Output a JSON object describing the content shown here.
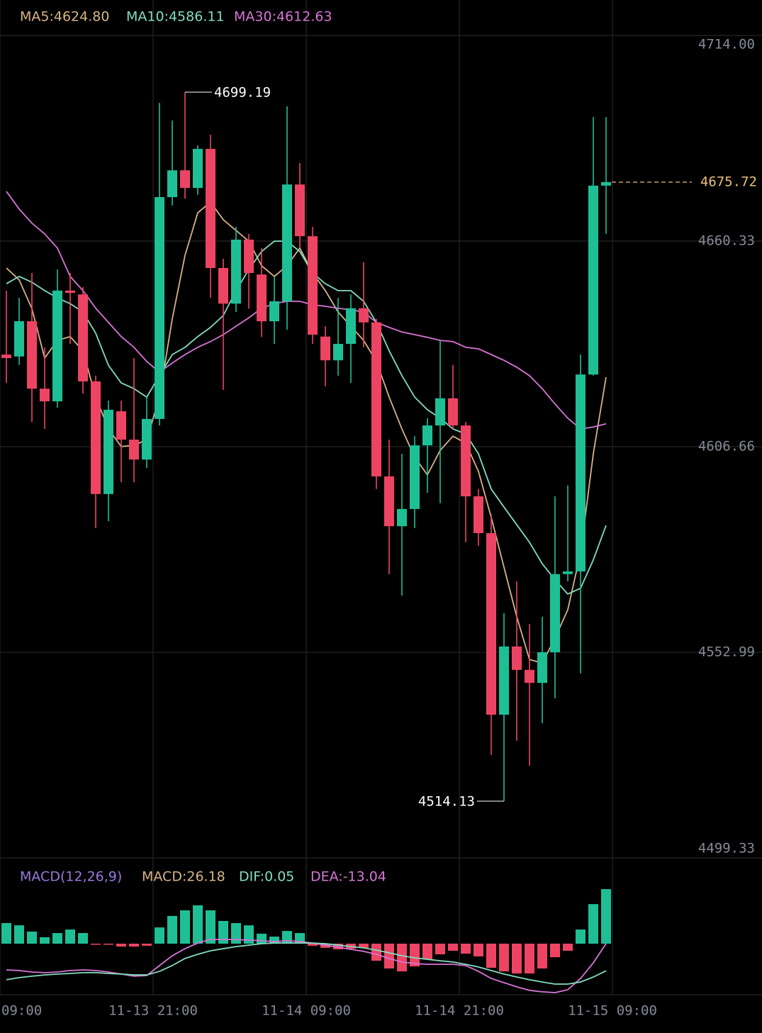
{
  "chart_data": [
    {
      "type": "candlestick",
      "open": [
        4630.7,
        4630.2,
        4639.4,
        4621.8,
        4618.5,
        4647.4,
        4646.4,
        4623.7,
        4594.3,
        4615.9,
        4608.5,
        4603.3,
        4613.9,
        4671.8,
        4678.8,
        4674.2,
        4684.4,
        4653.3,
        4644.0,
        4660.7,
        4651.6,
        4639.4,
        4644.6,
        4675.1,
        4661.6,
        4635.4,
        4629.2,
        4633.5,
        4642.8,
        4639.1,
        4598.9,
        4585.9,
        4590.4,
        4607.0,
        4612.2,
        4619.3,
        4612.2,
        4593.7,
        4584.1,
        4536.7,
        4554.5,
        4548.4,
        4545.0,
        4553.0,
        4573.4,
        4574.1,
        4625.5,
        4674.8
      ],
      "high": [
        4647.4,
        4645.5,
        4652.0,
        4632.6,
        4652.9,
        4652.0,
        4648.3,
        4625.2,
        4618.7,
        4618.7,
        4629.8,
        4619.6,
        4696.4,
        4691.8,
        4699.19,
        4685.3,
        4688.1,
        4655.7,
        4664.0,
        4662.2,
        4658.5,
        4651.1,
        4695.5,
        4680.7,
        4664.0,
        4638.1,
        4645.5,
        4646.4,
        4654.8,
        4640.0,
        4608.5,
        4604.8,
        4609.4,
        4614.1,
        4634.4,
        4628.0,
        4613.1,
        4595.6,
        4589.1,
        4563.2,
        4571.5,
        4560.4,
        4562.3,
        4593.7,
        4596.5,
        4630.7,
        4692.7,
        4692.7
      ],
      "low": [
        4623.3,
        4628.0,
        4613.1,
        4611.3,
        4616.8,
        4633.5,
        4620.5,
        4585.4,
        4587.2,
        4597.4,
        4597.4,
        4601.1,
        4612.2,
        4669.6,
        4671.4,
        4672.4,
        4645.5,
        4621.5,
        4641.8,
        4642.7,
        4635.3,
        4633.5,
        4637.2,
        4658.5,
        4633.5,
        4622.4,
        4625.2,
        4623.3,
        4632.6,
        4595.6,
        4573.4,
        4567.8,
        4585.4,
        4594.6,
        4591.9,
        4611.3,
        4581.7,
        4580.8,
        4526.2,
        4514.13,
        4529.9,
        4523.4,
        4534.5,
        4541.0,
        4571.5,
        4547.5,
        4625.2,
        4662.2
      ],
      "close": [
        4629.8,
        4639.4,
        4621.8,
        4618.5,
        4647.4,
        4646.8,
        4623.7,
        4594.3,
        4616.3,
        4608.5,
        4603.3,
        4613.9,
        4671.8,
        4678.8,
        4674.2,
        4684.4,
        4653.3,
        4644.0,
        4660.7,
        4652.0,
        4639.4,
        4644.6,
        4675.1,
        4661.6,
        4635.9,
        4629.2,
        4633.5,
        4642.8,
        4639.1,
        4598.9,
        4585.9,
        4590.4,
        4607.0,
        4612.2,
        4619.3,
        4612.2,
        4593.7,
        4584.1,
        4536.7,
        4554.5,
        4548.4,
        4545.0,
        4553.0,
        4573.4,
        4574.1,
        4625.5,
        4674.8,
        4675.72
      ],
      "up_color": "#1fbf96",
      "down_color": "#ee4463",
      "last_price_color": "#e9c07a",
      "series": [
        {
          "legend": "MA5:4624.80",
          "color": "#d6b486",
          "values": [
            4653.3,
            4650.2,
            4642.7,
            4629.8,
            4634.4,
            4635.4,
            4631.7,
            4619.6,
            4611.3,
            4606.7,
            4607.0,
            4608.5,
            4619.6,
            4640.0,
            4656.6,
            4667.7,
            4670.5,
            4665.9,
            4663.1,
            4660.3,
            4653.9,
            4651.1,
            4653.9,
            4658.5,
            4652.0,
            4647.4,
            4641.8,
            4638.1,
            4634.4,
            4628.9,
            4619.6,
            4611.3,
            4603.9,
            4599.3,
            4605.7,
            4609.4,
            4607.6,
            4600.2,
            4588.2,
            4575.2,
            4562.3,
            4551.1,
            4550.2,
            4556.7,
            4564.1,
            4578.9,
            4604.8,
            4624.8
          ]
        },
        {
          "legend": "MA10:4586.11",
          "color": "#82dcc0",
          "values": [
            4649.2,
            4651.1,
            4649.6,
            4647.4,
            4645.5,
            4644.0,
            4641.8,
            4636.3,
            4627.9,
            4623.3,
            4621.8,
            4619.6,
            4625.2,
            4630.7,
            4632.6,
            4635.4,
            4637.8,
            4640.9,
            4647.4,
            4652.9,
            4657.6,
            4660.3,
            4660.3,
            4657.6,
            4652.0,
            4649.2,
            4647.4,
            4647.4,
            4644.6,
            4639.1,
            4631.7,
            4625.2,
            4619.6,
            4616.3,
            4614.1,
            4611.3,
            4610.0,
            4604.8,
            4595.6,
            4590.9,
            4586.3,
            4581.7,
            4576.1,
            4571.9,
            4568.2,
            4569.7,
            4577.1,
            4586.11
          ]
        },
        {
          "legend": "MA30:4612.63",
          "color": "#d774d4",
          "values": [
            4673.3,
            4668.7,
            4665.0,
            4662.2,
            4658.5,
            4651.1,
            4647.4,
            4642.8,
            4639.1,
            4635.4,
            4632.6,
            4628.9,
            4626.1,
            4628.5,
            4630.7,
            4632.6,
            4634.1,
            4635.9,
            4638.1,
            4640.3,
            4642.8,
            4644.0,
            4644.6,
            4644.6,
            4643.7,
            4643.3,
            4642.8,
            4642.4,
            4641.8,
            4639.1,
            4637.8,
            4636.6,
            4635.9,
            4635.2,
            4634.4,
            4634.1,
            4632.6,
            4632.2,
            4630.7,
            4629.2,
            4627.4,
            4625.2,
            4621.8,
            4617.8,
            4614.1,
            4611.3,
            4611.8,
            4612.63
          ]
        }
      ],
      "ylim": [
        4499.33,
        4714.0
      ],
      "yticks": [
        {
          "value": 4714,
          "label": "4714.00"
        },
        4660.33,
        4606.66,
        4552.99,
        4499.33
      ],
      "xticks": [
        {
          "value": -0.5,
          "label": "09:00"
        },
        {
          "value": 11.5,
          "label": "11-13  21:00"
        },
        {
          "value": 23.5,
          "label": "11-14  09:00"
        },
        {
          "value": 35.5,
          "label": "11-14  21:00"
        },
        {
          "value": 47.5,
          "label": "11-15  09:00"
        }
      ],
      "grid": true
    },
    {
      "type": "macd",
      "title": "MACD(12,26,9)",
      "title_color": "#9a78de",
      "histogram": {
        "legend": "MACD:26.18",
        "legend_color": "#d6b486",
        "up_color": "#1fbf96",
        "down_color": "#ee4463",
        "values": [
          9.9,
          8.8,
          5.8,
          3.1,
          5.1,
          6.8,
          5.1,
          -0.3,
          -0.3,
          -1.4,
          -1.4,
          -1.0,
          7.8,
          13.3,
          16.0,
          18.4,
          16.0,
          10.9,
          9.9,
          8.8,
          4.8,
          3.4,
          6.1,
          5.1,
          -1.0,
          -2.0,
          -2.7,
          -2.4,
          -2.0,
          -8.2,
          -11.9,
          -13.3,
          -10.9,
          -7.5,
          -5.1,
          -3.4,
          -4.8,
          -6.1,
          -11.6,
          -13.3,
          -14.3,
          -14.3,
          -11.9,
          -6.5,
          -3.4,
          6.8,
          19.0,
          26.18
        ]
      },
      "series": [
        {
          "legend": "DIF:0.05",
          "legend_color": "#82dcc0",
          "color": "#d774d4",
          "values": [
            -12.6,
            -12.9,
            -13.6,
            -13.9,
            -13.6,
            -12.9,
            -12.6,
            -12.9,
            -13.6,
            -14.6,
            -15.6,
            -15.3,
            -10.5,
            -5.8,
            -2.4,
            0.3,
            2.0,
            2.0,
            2.0,
            1.7,
            1.4,
            1.0,
            1.4,
            1.0,
            0.3,
            -0.7,
            -1.7,
            -2.7,
            -3.7,
            -5.1,
            -7.1,
            -8.8,
            -9.5,
            -9.9,
            -9.9,
            -9.9,
            -10.5,
            -13.3,
            -16.7,
            -18.7,
            -20.7,
            -22.4,
            -23.1,
            -23.5,
            -22.1,
            -16.7,
            -9.2,
            0.05
          ]
        },
        {
          "legend": "DEA:-13.04",
          "legend_color": "#d774d4",
          "color": "#82dcc0",
          "values": [
            -17.3,
            -16.3,
            -15.6,
            -15.0,
            -14.6,
            -14.3,
            -13.9,
            -13.9,
            -14.3,
            -14.6,
            -15.0,
            -15.0,
            -13.3,
            -10.5,
            -7.1,
            -5.1,
            -3.4,
            -2.4,
            -1.4,
            -0.7,
            0,
            0.3,
            0.3,
            0.3,
            0.3,
            0,
            -0.7,
            -1.4,
            -2.0,
            -3.1,
            -4.4,
            -5.8,
            -6.8,
            -7.5,
            -8.2,
            -8.8,
            -9.9,
            -11.2,
            -12.9,
            -14.6,
            -16.0,
            -17.3,
            -18.4,
            -19.4,
            -19.4,
            -18.4,
            -16.0,
            -13.04
          ]
        }
      ],
      "ylim": [
        -24.5,
        40.5
      ]
    }
  ]
}
